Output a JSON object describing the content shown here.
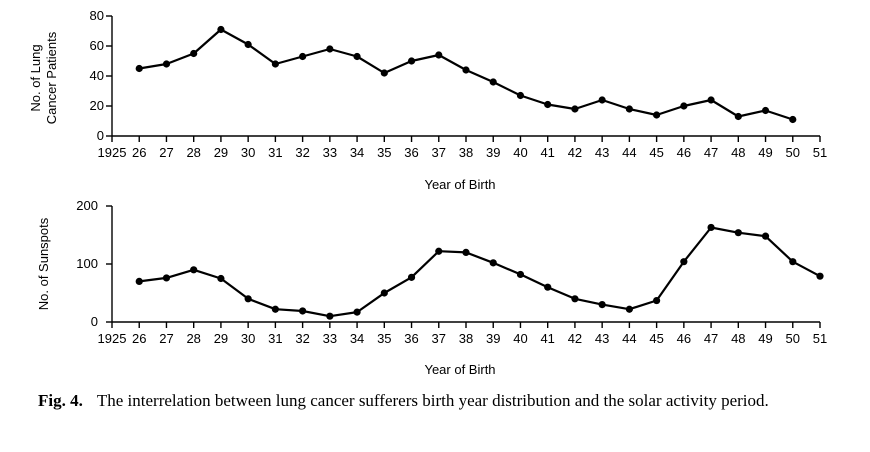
{
  "chart_data": [
    {
      "type": "line",
      "xlabel": "Year of Birth",
      "ylabel_lines": [
        "No. of Lung",
        "Cancer Patients"
      ],
      "x_tick_labels": [
        "1925",
        "26",
        "27",
        "28",
        "29",
        "30",
        "31",
        "32",
        "33",
        "34",
        "35",
        "36",
        "37",
        "38",
        "39",
        "40",
        "41",
        "42",
        "43",
        "44",
        "45",
        "46",
        "47",
        "48",
        "49",
        "50",
        "51"
      ],
      "xlim": [
        1925,
        1951
      ],
      "ylim": [
        0,
        80
      ],
      "yticks": [
        0,
        20,
        40,
        60,
        80
      ],
      "grid": false,
      "x": [
        1926,
        1927,
        1928,
        1929,
        1930,
        1931,
        1932,
        1933,
        1934,
        1935,
        1936,
        1937,
        1938,
        1939,
        1940,
        1941,
        1942,
        1943,
        1944,
        1945,
        1946,
        1947,
        1948,
        1949,
        1950
      ],
      "y": [
        45,
        48,
        55,
        71,
        61,
        48,
        53,
        58,
        53,
        42,
        50,
        54,
        44,
        36,
        27,
        21,
        18,
        24,
        18,
        14,
        20,
        24,
        13,
        17,
        11
      ]
    },
    {
      "type": "line",
      "xlabel": "Year of Birth",
      "ylabel_lines": [
        "No. of Sunspots"
      ],
      "x_tick_labels": [
        "1925",
        "26",
        "27",
        "28",
        "29",
        "30",
        "31",
        "32",
        "33",
        "34",
        "35",
        "36",
        "37",
        "38",
        "39",
        "40",
        "41",
        "42",
        "43",
        "44",
        "45",
        "46",
        "47",
        "48",
        "49",
        "50",
        "51"
      ],
      "xlim": [
        1925,
        1951
      ],
      "ylim": [
        0,
        200
      ],
      "yticks": [
        0,
        100,
        200
      ],
      "grid": false,
      "x": [
        1926,
        1927,
        1928,
        1929,
        1930,
        1931,
        1932,
        1933,
        1934,
        1935,
        1936,
        1937,
        1938,
        1939,
        1940,
        1941,
        1942,
        1943,
        1944,
        1945,
        1946,
        1947,
        1948,
        1949,
        1950,
        1951
      ],
      "y": [
        70,
        76,
        90,
        75,
        40,
        22,
        19,
        10,
        17,
        50,
        77,
        122,
        120,
        102,
        82,
        60,
        40,
        30,
        22,
        37,
        104,
        163,
        154,
        148,
        104,
        79
      ]
    }
  ],
  "caption": {
    "label": "Fig. 4.",
    "text": "The interrelation between lung cancer sufferers birth year distribution and the solar activity period."
  }
}
